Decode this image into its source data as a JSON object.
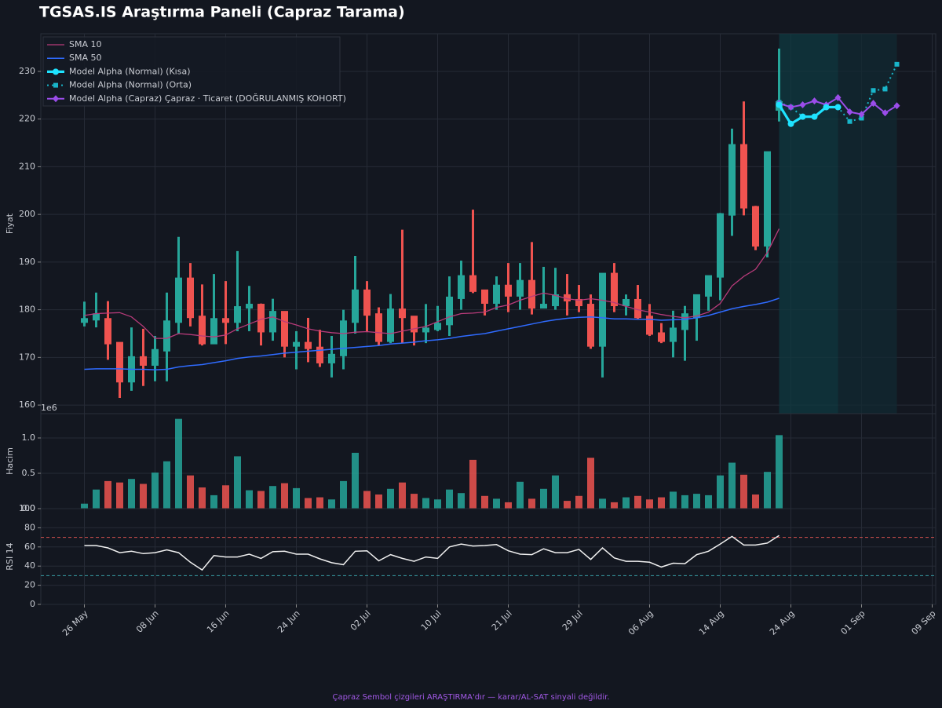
{
  "title": "TGSAS.IS Araştırma Paneli (Capraz Tarama)",
  "footer": "Çapraz Sembol çizgileri ARAŞTIRMA'dır — karar/AL-SAT sinyali değildir.",
  "chart_data": [
    {
      "type": "candlestick",
      "ylabel": "Fiyat",
      "legend": "upper left",
      "grid": true,
      "up_color": "#26a69a",
      "down_color": "#ef5350",
      "xlim": [
        -3.7,
        72.3
      ],
      "ylim": [
        158.2,
        237.9
      ],
      "yticks": [
        160,
        170,
        180,
        190,
        200,
        210,
        220,
        230
      ],
      "spans": [
        [
          59,
          64
        ],
        [
          64,
          69
        ]
      ],
      "x": [
        0,
        1,
        2,
        3,
        4,
        5,
        6,
        7,
        8,
        9,
        10,
        11,
        12,
        13,
        14,
        15,
        16,
        17,
        18,
        19,
        20,
        21,
        22,
        23,
        24,
        25,
        26,
        27,
        28,
        29,
        30,
        31,
        32,
        33,
        34,
        35,
        36,
        37,
        38,
        39,
        40,
        41,
        42,
        43,
        44,
        45,
        46,
        47,
        48,
        49,
        50,
        51,
        52,
        53,
        54,
        55,
        56,
        57,
        58,
        59
      ],
      "open": [
        177.5,
        178,
        178,
        173,
        165,
        170,
        168.5,
        171.5,
        177.5,
        186.5,
        178.5,
        173,
        178,
        177.5,
        180.5,
        181,
        175.5,
        179.5,
        172.5,
        173,
        172,
        169,
        170.5,
        177.5,
        184,
        179,
        173.5,
        180,
        178.5,
        175.5,
        176,
        177,
        182.5,
        187,
        184,
        181.5,
        185,
        183,
        186,
        180.5,
        181,
        183,
        182,
        181,
        172.5,
        187.5,
        181,
        182,
        178.5,
        175,
        173.5,
        176,
        178.5,
        183,
        187,
        200,
        214.5,
        201.5,
        193.5,
        222
      ],
      "high": [
        181.7,
        183.6,
        181.8,
        173,
        176.3,
        176,
        174.5,
        183.6,
        195.3,
        189.8,
        185.3,
        187.5,
        186,
        192.3,
        185,
        181.3,
        182.3,
        179.5,
        175.5,
        178.3,
        175.8,
        174.5,
        180,
        191.3,
        186,
        180.5,
        183.3,
        196.8,
        178.5,
        181.2,
        180.8,
        187,
        190.3,
        201,
        184,
        187,
        189.8,
        189.8,
        194.2,
        189,
        188.8,
        187.5,
        185.2,
        183.2,
        187.5,
        189.8,
        183.2,
        185.2,
        181.2,
        177.2,
        179.8,
        180.8,
        183,
        187,
        200.3,
        218,
        223.7,
        201.8,
        213.2,
        234.8
      ],
      "low": [
        176.5,
        176.3,
        169.5,
        161.5,
        163,
        164,
        165,
        165,
        175,
        176.5,
        172.5,
        173,
        172.8,
        175.5,
        175.5,
        172.5,
        173.5,
        170,
        167.5,
        169,
        168,
        165.8,
        167.5,
        175,
        175.3,
        172.5,
        173,
        173,
        172.5,
        173,
        175.5,
        174.5,
        180,
        183.5,
        178.8,
        180,
        179.5,
        180,
        179,
        180.5,
        180,
        178.8,
        179.5,
        171.8,
        165.8,
        179.5,
        178.8,
        178,
        174.5,
        173,
        170,
        169.3,
        173.5,
        179.8,
        182,
        195.5,
        199.8,
        192.5,
        191,
        219.5
      ],
      "close": [
        178,
        179,
        173,
        165,
        170,
        168.5,
        171.5,
        177.5,
        186.5,
        178.5,
        173,
        178,
        177.5,
        180.5,
        181,
        175.5,
        179.5,
        172.5,
        173,
        172,
        169,
        170.5,
        177.5,
        184,
        179,
        173.5,
        180,
        178.5,
        175.5,
        176,
        177,
        182.5,
        187,
        184,
        181.5,
        185,
        183,
        186,
        180.5,
        181,
        183,
        182,
        181,
        172.5,
        187.5,
        181,
        182,
        178.5,
        175,
        173.5,
        176,
        179,
        183,
        187,
        200,
        214.5,
        201.5,
        193.5,
        213,
        223.5
      ],
      "series": [
        {
          "name": "SMA 10",
          "color": "#b83b7a",
          "style": "solid",
          "width": 1.3,
          "values": [
            178.8,
            179.2,
            179.3,
            179.4,
            178.5,
            176.5,
            174,
            174,
            175,
            174.8,
            174.5,
            174.3,
            174.7,
            176,
            177,
            178,
            178.5,
            177.5,
            176.8,
            176,
            175.5,
            175.2,
            175,
            175.3,
            175.4,
            175.2,
            175,
            175.5,
            176,
            176.5,
            177.5,
            178.5,
            179.2,
            179.3,
            179.5,
            180.5,
            181,
            182,
            182.8,
            183.5,
            183,
            182.3,
            182,
            182.3,
            182,
            181.5,
            180.7,
            180,
            179.5,
            179,
            178.6,
            178.3,
            178.7,
            179.5,
            181.3,
            185,
            187,
            188.5,
            192,
            197
          ]
        },
        {
          "name": "SMA 50",
          "color": "#2f6bff",
          "style": "solid",
          "width": 1.5,
          "values": [
            167.5,
            167.6,
            167.6,
            167.6,
            167.5,
            167.5,
            167.4,
            167.5,
            168,
            168.3,
            168.5,
            168.9,
            169.3,
            169.8,
            170.1,
            170.3,
            170.6,
            170.9,
            171.1,
            171.3,
            171.5,
            171.7,
            171.9,
            172.1,
            172.3,
            172.5,
            172.8,
            173,
            173.2,
            173.5,
            173.7,
            174,
            174.4,
            174.7,
            175,
            175.5,
            176,
            176.5,
            177,
            177.5,
            177.9,
            178.2,
            178.4,
            178.5,
            178.3,
            178.1,
            178.1,
            178,
            178,
            177.8,
            177.9,
            178,
            178.3,
            178.8,
            179.5,
            180.2,
            180.7,
            181.1,
            181.6,
            182.4
          ]
        },
        {
          "name": "Model Alpha (Normal) (Orta)",
          "color": "#19b5c9",
          "style": "dotted",
          "width": 2,
          "marker": "square",
          "x": [
            59,
            60,
            61,
            62,
            63,
            64,
            65,
            66,
            67,
            68,
            69
          ],
          "values": [
            223.5,
            222.5,
            220.5,
            220.5,
            222.5,
            222.5,
            219.5,
            220.2,
            226,
            226.3,
            231.5
          ]
        },
        {
          "name": "Model Alpha (Capraz) Çapraz · Ticaret (DOĞRULANMIŞ KOHORT)",
          "color": "#9b4dea",
          "style": "solid",
          "width": 2,
          "marker": "diamond",
          "x": [
            59,
            60,
            61,
            62,
            63,
            64,
            65,
            66,
            67,
            68,
            69
          ],
          "values": [
            223.3,
            222.5,
            223,
            223.8,
            223,
            224.5,
            221.5,
            221,
            223.3,
            221.3,
            222.8
          ]
        },
        {
          "name": "Model Alpha (Normal) (Kısa)",
          "color": "#1ee3ff",
          "style": "solid",
          "width": 3.2,
          "marker": "circle",
          "x": [
            59,
            60,
            61,
            62,
            63,
            64
          ],
          "values": [
            223,
            219,
            220.5,
            220.5,
            222.5,
            222.5
          ]
        }
      ],
      "legend_order": [
        0,
        1,
        4,
        2,
        3
      ]
    },
    {
      "type": "bar",
      "ylabel": "Hacim",
      "offset_label": "1e6",
      "grid": true,
      "xlim": [
        -3.7,
        72.3
      ],
      "ylim": [
        0,
        1.344
      ],
      "yticks": [
        {
          "value": 0,
          "label": "0.0"
        },
        0.5,
        {
          "value": 1,
          "label": "1.0"
        }
      ],
      "values": [
        0.07,
        0.27,
        0.39,
        0.37,
        0.42,
        0.35,
        0.51,
        0.67,
        1.27,
        0.47,
        0.3,
        0.19,
        0.33,
        0.74,
        0.26,
        0.25,
        0.32,
        0.36,
        0.29,
        0.15,
        0.16,
        0.13,
        0.39,
        0.79,
        0.25,
        0.2,
        0.28,
        0.37,
        0.21,
        0.15,
        0.13,
        0.27,
        0.22,
        0.69,
        0.18,
        0.14,
        0.09,
        0.38,
        0.14,
        0.28,
        0.47,
        0.11,
        0.18,
        0.72,
        0.14,
        0.09,
        0.16,
        0.18,
        0.13,
        0.16,
        0.24,
        0.19,
        0.21,
        0.19,
        0.47,
        0.65,
        0.48,
        0.2,
        0.52,
        1.04
      ]
    },
    {
      "type": "line",
      "ylabel": "RSI 14",
      "grid": true,
      "color": "#f0f0f0",
      "xlim": [
        -3.7,
        72.3
      ],
      "ylim": [
        0,
        100
      ],
      "yticks": [
        0,
        20,
        40,
        60,
        80,
        100
      ],
      "hlines": [
        {
          "value": 70,
          "color": "#d9534f"
        },
        {
          "value": 30,
          "color": "#3a9fa6"
        }
      ],
      "values": [
        61.5,
        61.5,
        59,
        54,
        55.5,
        53,
        54,
        57,
        54,
        44,
        36,
        51,
        49.5,
        49.5,
        52.5,
        48,
        55,
        55.5,
        52.5,
        52.5,
        47.5,
        43.5,
        41.5,
        55.5,
        56,
        45.5,
        52,
        48,
        45,
        49.5,
        48,
        60,
        63,
        61,
        61.5,
        62.5,
        56,
        52.5,
        52,
        58,
        54,
        54,
        57.5,
        47,
        59,
        48.5,
        45,
        45,
        44,
        39,
        43,
        42.5,
        52,
        55.5,
        63,
        71,
        62,
        62,
        64,
        72
      ],
      "xticks": [
        {
          "value": 0,
          "label": "26 May"
        },
        {
          "value": 6,
          "label": "08 Jun"
        },
        {
          "value": 12,
          "label": "16 Jun"
        },
        {
          "value": 18,
          "label": "24 Jun"
        },
        {
          "value": 24,
          "label": "02 Jul"
        },
        {
          "value": 30,
          "label": "10 Jul"
        },
        {
          "value": 36,
          "label": "21 Jul"
        },
        {
          "value": 42,
          "label": "29 Jul"
        },
        {
          "value": 48,
          "label": "06 Aug"
        },
        {
          "value": 54,
          "label": "14 Aug"
        },
        {
          "value": 60,
          "label": "24 Aug"
        },
        {
          "value": 66,
          "label": "01 Sep"
        },
        {
          "value": 72,
          "label": "09 Sep"
        }
      ]
    }
  ]
}
